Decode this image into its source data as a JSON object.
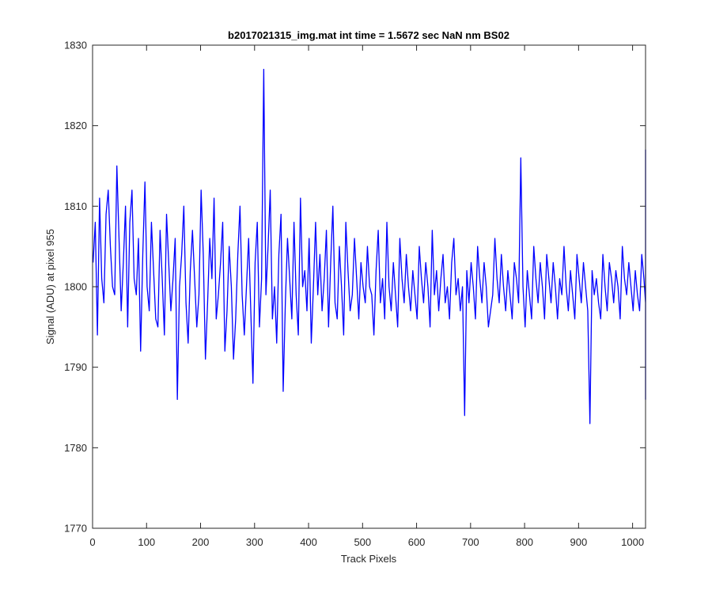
{
  "chart_data": {
    "type": "line",
    "title": "b2017021315_img.mat int time = 1.5672 sec  NaN nm BS02",
    "xlabel": "Track Pixels",
    "ylabel": "Signal (ADU) at pixel 955",
    "xlim": [
      0,
      1024
    ],
    "ylim": [
      1770,
      1830
    ],
    "xticks": [
      0,
      100,
      200,
      300,
      400,
      500,
      600,
      700,
      800,
      900,
      1000
    ],
    "yticks": [
      1770,
      1780,
      1790,
      1800,
      1810,
      1820,
      1830
    ],
    "grid": false,
    "line_color": "#0000ff",
    "series": [
      {
        "name": "",
        "x_start": 1,
        "x_step": 1,
        "sampled_every": 4,
        "values": [
          1803,
          1808,
          1794,
          1811,
          1801,
          1798,
          1809,
          1812,
          1805,
          1800,
          1799,
          1815,
          1806,
          1797,
          1803,
          1810,
          1795,
          1808,
          1812,
          1801,
          1799,
          1806,
          1792,
          1804,
          1813,
          1800,
          1797,
          1808,
          1802,
          1796,
          1795,
          1807,
          1801,
          1794,
          1809,
          1803,
          1797,
          1801,
          1806,
          1786,
          1800,
          1804,
          1810,
          1798,
          1793,
          1802,
          1807,
          1801,
          1795,
          1799,
          1812,
          1804,
          1791,
          1798,
          1806,
          1801,
          1811,
          1796,
          1799,
          1803,
          1808,
          1792,
          1797,
          1805,
          1800,
          1791,
          1796,
          1804,
          1810,
          1799,
          1794,
          1800,
          1806,
          1797,
          1788,
          1803,
          1808,
          1795,
          1801,
          1827,
          1799,
          1805,
          1812,
          1796,
          1800,
          1793,
          1804,
          1809,
          1787,
          1798,
          1806,
          1801,
          1796,
          1808,
          1799,
          1794,
          1811,
          1800,
          1802,
          1797,
          1806,
          1793,
          1800,
          1808,
          1799,
          1804,
          1797,
          1801,
          1807,
          1795,
          1803,
          1810,
          1798,
          1796,
          1805,
          1800,
          1794,
          1808,
          1802,
          1797,
          1799,
          1806,
          1801,
          1796,
          1803,
          1800,
          1798,
          1805,
          1800,
          1799,
          1794,
          1802,
          1807,
          1798,
          1801,
          1796,
          1808,
          1800,
          1797,
          1803,
          1799,
          1795,
          1806,
          1801,
          1798,
          1804,
          1800,
          1797,
          1802,
          1799,
          1796,
          1805,
          1801,
          1798,
          1803,
          1800,
          1795,
          1807,
          1799,
          1802,
          1797,
          1801,
          1804,
          1798,
          1800,
          1796,
          1803,
          1806,
          1799,
          1801,
          1797,
          1800,
          1784,
          1802,
          1798,
          1803,
          1800,
          1796,
          1805,
          1801,
          1798,
          1803,
          1800,
          1795,
          1797,
          1799,
          1806,
          1801,
          1798,
          1804,
          1800,
          1797,
          1802,
          1799,
          1796,
          1803,
          1801,
          1798,
          1816,
          1800,
          1795,
          1802,
          1799,
          1796,
          1805,
          1801,
          1798,
          1803,
          1800,
          1796,
          1804,
          1801,
          1798,
          1803,
          1800,
          1796,
          1801,
          1799,
          1805,
          1800,
          1797,
          1802,
          1799,
          1796,
          1804,
          1801,
          1798,
          1803,
          1800,
          1797,
          1783,
          1802,
          1799,
          1801,
          1798,
          1796,
          1804,
          1800,
          1797,
          1803,
          1801,
          1798,
          1802,
          1800,
          1796,
          1805,
          1801,
          1799,
          1803,
          1800,
          1797,
          1802,
          1799,
          1797,
          1804,
          1801,
          1798,
          1803,
          1800,
          1797,
          1802,
          1799,
          1806,
          1800,
          1797,
          1803,
          1801,
          1798,
          1802,
          1800,
          1796,
          1804,
          1801,
          1797,
          1799,
          1803,
          1800,
          1796,
          1802,
          1799,
          1797,
          1805,
          1801,
          1798,
          1803,
          1800,
          1797,
          1802,
          1799,
          1795,
          1804,
          1801,
          1798,
          1803,
          1800,
          1797,
          1804,
          1801,
          1797,
          1806,
          1798,
          1801,
          1803,
          1799,
          1796,
          1805,
          1802,
          1798,
          1800,
          1808,
          1797,
          1803,
          1800,
          1796,
          1804,
          1801,
          1798,
          1802,
          1799,
          1796,
          1805,
          1801,
          1797,
          1803,
          1800,
          1797,
          1806,
          1801,
          1798,
          1804,
          1800,
          1796,
          1812,
          1801,
          1798,
          1803,
          1800,
          1797,
          1802,
          1799,
          1796,
          1805,
          1801,
          1798,
          1803,
          1800,
          1797,
          1788,
          1802,
          1799,
          1806,
          1801,
          1798,
          1803,
          1800,
          1797,
          1802,
          1799,
          1796,
          1805,
          1801,
          1798,
          1803,
          1800,
          1797,
          1804,
          1801,
          1797,
          1817,
          1800,
          1798,
          1803,
          1800,
          1796,
          1802,
          1799,
          1797,
          1805,
          1801,
          1798,
          1803,
          1800,
          1797,
          1804,
          1801,
          1798,
          1807,
          1800,
          1797,
          1803,
          1800,
          1796,
          1802,
          1799,
          1797,
          1804,
          1801,
          1798,
          1803,
          1800,
          1796,
          1805,
          1801,
          1798,
          1803,
          1800,
          1797,
          1802,
          1799,
          1796,
          1786,
          1801,
          1797,
          1803,
          1800,
          1798,
          1806,
          1801,
          1797,
          1803,
          1800,
          1796,
          1805,
          1801,
          1798,
          1803,
          1800,
          1797,
          1804,
          1801,
          1798,
          1808,
          1800,
          1797,
          1803,
          1800,
          1796,
          1802,
          1799,
          1797,
          1805,
          1801,
          1798,
          1803,
          1800,
          1797,
          1806,
          1801,
          1798,
          1816,
          1800,
          1797,
          1803,
          1800,
          1796,
          1802,
          1799,
          1797,
          1805,
          1801,
          1798,
          1803,
          1800,
          1797,
          1804,
          1801,
          1798,
          1806,
          1800,
          1797,
          1803,
          1800
        ]
      }
    ]
  }
}
